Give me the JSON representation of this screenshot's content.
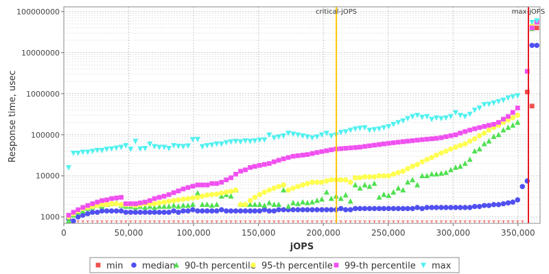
{
  "chart_data": {
    "type": "scatter",
    "title": "",
    "xlabel": "jOPS",
    "ylabel": "Response time, usec",
    "x_scale": "linear",
    "y_scale": "log",
    "xlim": [
      0,
      367000
    ],
    "ylim": [
      700,
      130000000
    ],
    "grid": true,
    "legend_position": "bottom",
    "x_ticks": [
      {
        "value": 0,
        "label": "0"
      },
      {
        "value": 50000,
        "label": "50,000"
      },
      {
        "value": 100000,
        "label": "100,000"
      },
      {
        "value": 150000,
        "label": "150,000"
      },
      {
        "value": 200000,
        "label": "200,000"
      },
      {
        "value": 250000,
        "label": "250,000"
      },
      {
        "value": 300000,
        "label": "300,000"
      },
      {
        "value": 350000,
        "label": "350,000"
      }
    ],
    "y_ticks": [
      {
        "value": 1000,
        "label": "1000"
      },
      {
        "value": 10000,
        "label": "10000"
      },
      {
        "value": 100000,
        "label": "100000"
      },
      {
        "value": 1000000,
        "label": "1000000"
      },
      {
        "value": 10000000,
        "label": "10000000"
      },
      {
        "value": 100000000,
        "label": "100000000"
      }
    ],
    "annotations": [
      {
        "label": "critical-jOPS",
        "x": 210000,
        "color": "#ffc400"
      },
      {
        "label": "max-jOPS",
        "x": 358000,
        "color": "#e8141e"
      }
    ],
    "x": [
      3700,
      7400,
      11000,
      14700,
      18400,
      22100,
      25800,
      29400,
      33100,
      36800,
      40500,
      44200,
      47800,
      51500,
      55200,
      58900,
      62600,
      66300,
      69900,
      73600,
      77300,
      81000,
      84700,
      88300,
      92000,
      95700,
      99400,
      103100,
      106700,
      110400,
      114100,
      117800,
      121500,
      125200,
      128800,
      132500,
      136200,
      139900,
      143600,
      147200,
      150900,
      154600,
      158300,
      162000,
      165600,
      169300,
      173000,
      176700,
      180400,
      184100,
      187700,
      191400,
      195100,
      198800,
      202500,
      206100,
      209800,
      213500,
      217200,
      220900,
      224600,
      228200,
      231900,
      235600,
      239300,
      243000,
      246600,
      250300,
      254000,
      257700,
      261400,
      265000,
      268700,
      272400,
      276100,
      279800,
      283500,
      287100,
      290800,
      294500,
      298200,
      301900,
      305500,
      309200,
      312900,
      316600,
      320300,
      324000,
      327600,
      331300,
      335000,
      338700,
      342400,
      346000,
      349700,
      353400,
      357100,
      360800,
      364500
    ],
    "series": [
      {
        "name": "min",
        "color": "#f05050",
        "marker": "square",
        "values": [
          800,
          800,
          800,
          800,
          800,
          800,
          800,
          800,
          800,
          800,
          800,
          800,
          800,
          800,
          800,
          800,
          800,
          800,
          800,
          800,
          800,
          800,
          800,
          800,
          800,
          800,
          800,
          800,
          800,
          800,
          800,
          800,
          800,
          800,
          800,
          800,
          800,
          800,
          800,
          800,
          800,
          800,
          800,
          800,
          800,
          800,
          800,
          800,
          800,
          800,
          800,
          800,
          800,
          800,
          800,
          800,
          800,
          800,
          800,
          800,
          800,
          800,
          800,
          800,
          800,
          800,
          800,
          800,
          800,
          800,
          800,
          800,
          800,
          800,
          800,
          800,
          800,
          800,
          800,
          800,
          800,
          800,
          800,
          800,
          800,
          800,
          800,
          800,
          800,
          800,
          800,
          800,
          800,
          800,
          800,
          800,
          1100000,
          500000,
          40000000
        ]
      },
      {
        "name": "median",
        "color": "#5050f0",
        "marker": "circle",
        "values": [
          900,
          800,
          1000,
          1100,
          1200,
          1300,
          1300,
          1400,
          1400,
          1400,
          1400,
          1400,
          1300,
          1300,
          1300,
          1300,
          1300,
          1300,
          1300,
          1300,
          1300,
          1300,
          1400,
          1300,
          1400,
          1400,
          1500,
          1400,
          1400,
          1400,
          1400,
          1400,
          1500,
          1400,
          1400,
          1400,
          1400,
          1400,
          1400,
          1400,
          1400,
          1500,
          1400,
          1400,
          1500,
          1500,
          1500,
          1500,
          1500,
          1500,
          1500,
          1500,
          1500,
          1500,
          1500,
          1500,
          1500,
          1600,
          1500,
          1500,
          1600,
          1600,
          1600,
          1600,
          1600,
          1600,
          1600,
          1600,
          1600,
          1600,
          1600,
          1600,
          1600,
          1700,
          1600,
          1700,
          1700,
          1700,
          1700,
          1700,
          1700,
          1700,
          1700,
          1700,
          1700,
          1800,
          1800,
          1900,
          1900,
          2000,
          2000,
          2100,
          2200,
          2300,
          2600,
          5500,
          7500,
          15000000,
          15000000
        ]
      },
      {
        "name": "90-th percentile",
        "color": "#50e050",
        "marker": "triangle-up",
        "values": [
          800,
          1100,
          1300,
          1400,
          1600,
          1700,
          1900,
          1800,
          2000,
          2100,
          2200,
          1900,
          1800,
          1800,
          1700,
          1800,
          1700,
          1800,
          1700,
          1800,
          1800,
          1800,
          1900,
          1800,
          1900,
          1900,
          2000,
          3800,
          2000,
          2000,
          1900,
          2000,
          3200,
          3500,
          3200,
          4500,
          2000,
          2000,
          2000,
          2000,
          2000,
          1900,
          2200,
          2000,
          2000,
          4500,
          1800,
          2200,
          2100,
          2300,
          2200,
          2300,
          2500,
          2700,
          4000,
          2800,
          3200,
          2800,
          3400,
          2400,
          6000,
          5000,
          6000,
          5500,
          6500,
          3000,
          3500,
          3300,
          4000,
          5000,
          4500,
          7000,
          8000,
          6000,
          10000,
          10000,
          11000,
          11000,
          11500,
          12000,
          14000,
          16000,
          17000,
          20000,
          25000,
          40000,
          45000,
          60000,
          70000,
          90000,
          100000,
          130000,
          150000,
          170000,
          200000,
          0,
          0,
          38000000,
          55000000
        ]
      },
      {
        "name": "95-th percentile",
        "color": "#ffff50",
        "marker": "circle",
        "values": [
          1000,
          1200,
          1400,
          1600,
          1700,
          1800,
          1900,
          2000,
          2000,
          2100,
          2100,
          2000,
          2000,
          2000,
          1900,
          2000,
          2100,
          2100,
          2100,
          2200,
          2300,
          2400,
          2500,
          2600,
          2700,
          2800,
          2900,
          3000,
          3200,
          3400,
          3500,
          3600,
          3800,
          4000,
          4200,
          4500,
          2000,
          2000,
          2500,
          3000,
          3500,
          4000,
          4500,
          5000,
          5500,
          6000,
          4500,
          5000,
          5500,
          6000,
          6500,
          7000,
          7000,
          7000,
          7500,
          8000,
          8000,
          8000,
          8000,
          7000,
          9000,
          9000,
          9500,
          9500,
          9500,
          10000,
          10000,
          10000,
          11000,
          12000,
          13000,
          15000,
          17000,
          19000,
          22000,
          25000,
          28000,
          32000,
          36000,
          40000,
          45000,
          50000,
          55000,
          60000,
          70000,
          80000,
          95000,
          110000,
          130000,
          150000,
          170000,
          200000,
          230000,
          260000,
          300000,
          0,
          0,
          45000000,
          55000000
        ]
      },
      {
        "name": "99-th percentile",
        "color": "#f050f0",
        "marker": "square",
        "values": [
          1100,
          1300,
          1500,
          1700,
          1900,
          2100,
          2300,
          2500,
          2600,
          2800,
          2900,
          3000,
          2100,
          2100,
          2100,
          2200,
          2300,
          2500,
          2800,
          3000,
          3200,
          3500,
          3900,
          4300,
          4800,
          5200,
          5600,
          6000,
          6000,
          6000,
          6500,
          6500,
          7000,
          8000,
          9000,
          11000,
          13000,
          14000,
          16000,
          17000,
          18000,
          19000,
          20000,
          22000,
          24000,
          26000,
          28000,
          30000,
          31000,
          32000,
          33000,
          35000,
          37000,
          39000,
          41000,
          43000,
          45000,
          46000,
          47000,
          48000,
          49000,
          50000,
          52000,
          54000,
          56000,
          58000,
          60000,
          62000,
          64000,
          66000,
          68000,
          70000,
          72000,
          74000,
          76000,
          78000,
          80000,
          82000,
          85000,
          90000,
          95000,
          100000,
          110000,
          120000,
          130000,
          140000,
          150000,
          160000,
          170000,
          180000,
          200000,
          240000,
          280000,
          350000,
          450000,
          0,
          3500000,
          40000000,
          55000000
        ]
      },
      {
        "name": "max",
        "color": "#50f0f0",
        "marker": "triangle-down",
        "values": [
          16000,
          36000,
          36000,
          38000,
          38000,
          40000,
          42000,
          42000,
          45000,
          46000,
          48000,
          50000,
          55000,
          45000,
          70000,
          46000,
          47000,
          60000,
          52000,
          50000,
          50000,
          47000,
          55000,
          53000,
          52000,
          54000,
          77000,
          78000,
          52000,
          55000,
          57000,
          60000,
          60000,
          65000,
          68000,
          70000,
          68000,
          72000,
          70000,
          72000,
          75000,
          76000,
          100000,
          85000,
          90000,
          95000,
          110000,
          105000,
          100000,
          95000,
          90000,
          85000,
          90000,
          100000,
          110000,
          95000,
          100000,
          115000,
          120000,
          130000,
          140000,
          145000,
          150000,
          130000,
          135000,
          140000,
          150000,
          160000,
          180000,
          200000,
          220000,
          250000,
          280000,
          300000,
          270000,
          280000,
          240000,
          260000,
          250000,
          260000,
          280000,
          350000,
          300000,
          280000,
          320000,
          400000,
          450000,
          550000,
          560000,
          600000,
          650000,
          700000,
          800000,
          850000,
          900000,
          0,
          0,
          55000000,
          60000000
        ]
      }
    ]
  }
}
